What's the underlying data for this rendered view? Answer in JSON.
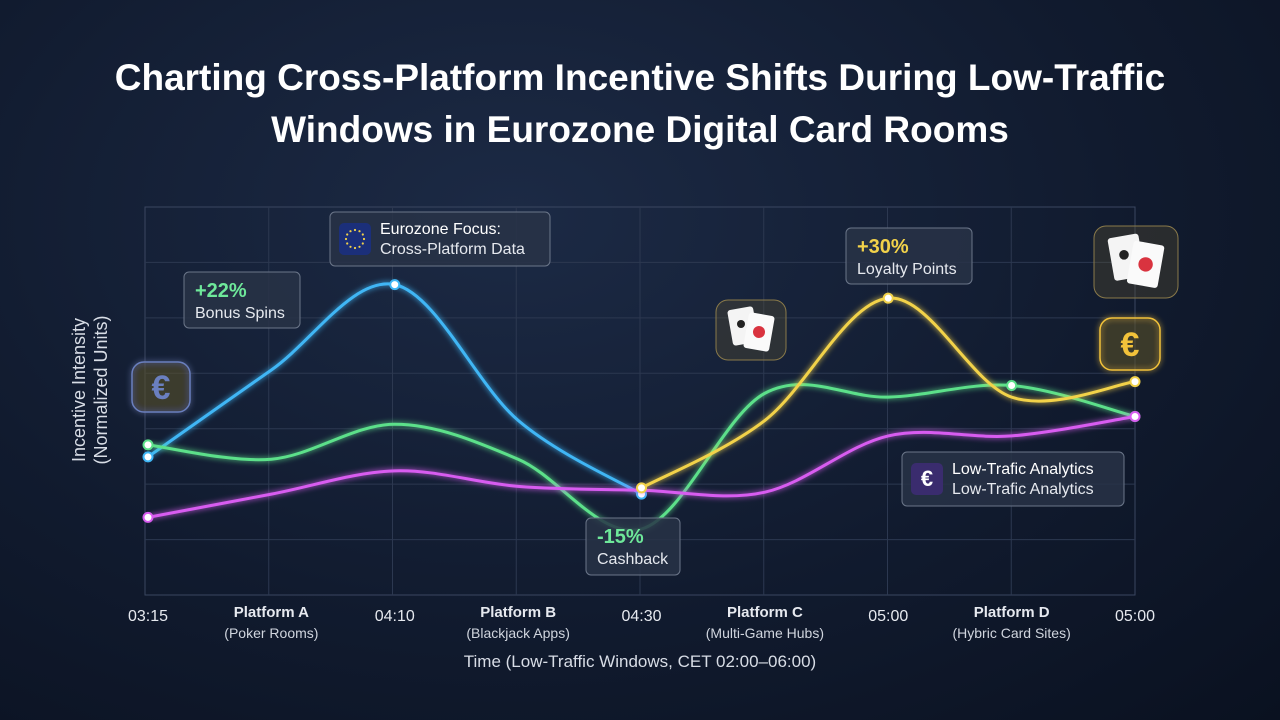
{
  "chart_data": {
    "type": "line",
    "title": "Charting Cross-Platform Incentive Shifts During Low-Traffic Windows in Eurozone Digital Card Rooms",
    "x_label": "Time (Low-Traffic Windows, CET 02:00–06:00)",
    "y_label": "Incentive Intensity (Normalized Units)",
    "categories": [
      "03:15",
      "Platform A",
      "04:10",
      "Platform B",
      "04:30",
      "Platform C",
      "05:00",
      "Platform D",
      "05:00"
    ],
    "category_sublabels": [
      null,
      "(Poker Rooms)",
      null,
      "(Blackjack Apps)",
      null,
      "(Multi-Game Hubs)",
      null,
      "(Hybric Card Sites)",
      null
    ],
    "ylim": [
      0,
      100
    ],
    "grid": true,
    "series": [
      {
        "color": "#3fb6f5",
        "values": [
          35.6,
          58,
          80,
          45,
          26,
          null,
          null,
          null,
          null
        ]
      },
      {
        "color": "#5ce08a",
        "values": [
          38.7,
          35,
          44,
          35,
          17,
          52,
          51,
          54,
          46
        ]
      },
      {
        "color": "#d85cf0",
        "values": [
          20,
          26,
          32,
          28,
          27,
          26.5,
          41,
          41,
          46
        ]
      },
      {
        "color": "#f2d24a",
        "values": [
          null,
          null,
          null,
          null,
          27.6,
          45,
          76.5,
          51,
          55
        ]
      }
    ],
    "annotations": [
      {
        "value": "+22%",
        "label": "Bonus Spins",
        "color": "#6ee89a"
      },
      {
        "value": "Eurozone Focus:",
        "label": "Cross-Platform Data",
        "color": "#ffffff"
      },
      {
        "value": "-15%",
        "label": "Cashback",
        "color": "#6ee89a"
      },
      {
        "value": "+30%",
        "label": "Loyalty Points",
        "color": "#f2d24a"
      },
      {
        "value": "Low-Trafic Analytics",
        "label": "Low-Trafic Analytics",
        "color": "#ffffff"
      }
    ],
    "icon_text": "€"
  }
}
